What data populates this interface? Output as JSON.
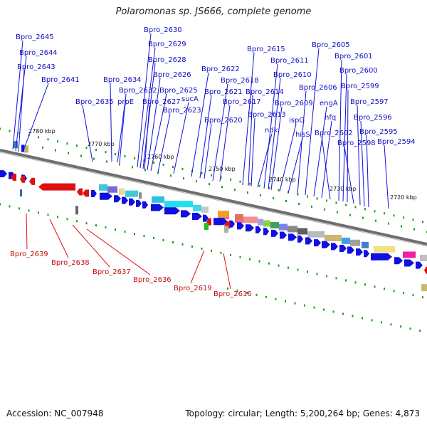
{
  "header": {
    "title": "Polaromonas sp. JS666, complete genome"
  },
  "footer": {
    "accession": "Accession: NC_007948",
    "summary": "Topology: circular; Length: 5,200,264 bp; Genes: 4,873"
  },
  "colors": {
    "forward": "#1010e0",
    "reverse": "#e01010",
    "backbone": "#808080",
    "tick": "#10a010"
  },
  "scale_labels": [
    "2780 kbp",
    "2770 kbp",
    "2760 kbp",
    "2750 kbp",
    "2740 kbp",
    "2730 kbp",
    "2720 kbp"
  ],
  "forward_gene_labels": [
    "Bpro_2645",
    "Bpro_2644",
    "Bpro_2643",
    "Bpro_2641",
    "Bpro_2635",
    "Bpro_2634",
    "prpE",
    "Bpro_2632",
    "Bpro_2630",
    "Bpro_2629",
    "Bpro_2628",
    "Bpro_2627",
    "Bpro_2626",
    "Bpro_2625",
    "Bpro_2623",
    "sucA",
    "Bpro_2622",
    "Bpro_2621",
    "Bpro_2620",
    "Bpro_2618",
    "Bpro_2617",
    "Bpro_2615",
    "Bpro_2614",
    "Bpro_2613",
    "ndk",
    "Bpro_2611",
    "Bpro_2610",
    "Bpro_2609",
    "ispG",
    "hisS",
    "Bpro_2606",
    "Bpro_2605",
    "engA",
    "hfq",
    "Bpro_2602",
    "Bpro_2601",
    "Bpro_2600",
    "Bpro_2599",
    "Bpro_2598",
    "Bpro_2597",
    "Bpro_2596",
    "Bpro_2595",
    "Bpro_2594"
  ],
  "reverse_gene_labels": [
    "Bpro_2639",
    "Bpro_2638",
    "Bpro_2637",
    "Bpro_2636",
    "Bpro_2619",
    "Bpro_2616"
  ]
}
